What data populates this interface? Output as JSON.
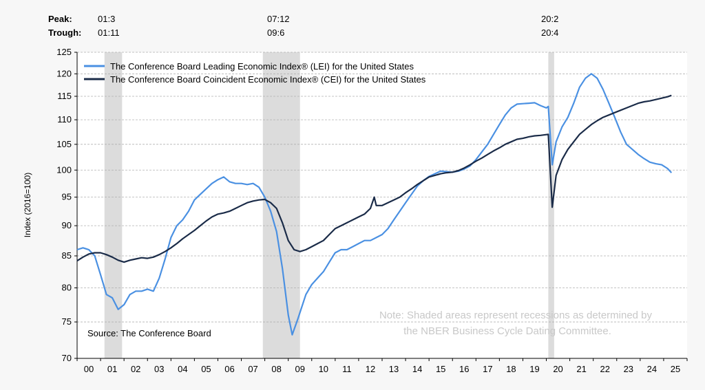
{
  "header": {
    "peak_label": "Peak:",
    "trough_label": "Trough:",
    "recessions": [
      {
        "peak": "01:3",
        "trough": "01:11"
      },
      {
        "peak": "07:12",
        "trough": "09:6"
      },
      {
        "peak": "20:2",
        "trough": "20:4"
      }
    ]
  },
  "note_line1": "Note: Shaded areas represent recessions as determined by",
  "note_line2": "the NBER Business Cycle Dating Committee.",
  "source": "Source: The Conference Board",
  "chart_data": {
    "type": "line",
    "ylabel": "Index (2016=100)",
    "y_scale": "log",
    "ylim": [
      70,
      125
    ],
    "yticks": [
      70,
      75,
      80,
      85,
      90,
      95,
      100,
      105,
      110,
      115,
      120,
      125
    ],
    "xlim": [
      2000,
      2026
    ],
    "xtick_labels": [
      "00",
      "01",
      "02",
      "03",
      "04",
      "05",
      "06",
      "07",
      "08",
      "09",
      "10",
      "11",
      "12",
      "13",
      "14",
      "15",
      "16",
      "17",
      "18",
      "19",
      "20",
      "21",
      "22",
      "23",
      "24",
      "25"
    ],
    "grid": true,
    "legend_position": "top-left",
    "recession_bands": [
      {
        "start": "2001-03",
        "end": "2001-11"
      },
      {
        "start": "2007-12",
        "end": "2009-06"
      },
      {
        "start": "2020-02",
        "end": "2020-04"
      }
    ],
    "series": [
      {
        "name": "The Conference Board Leading Economic Index® (LEI) for the United States",
        "color": "#4a90e2",
        "points": [
          [
            "2000-01",
            86.0
          ],
          [
            "2000-04",
            86.3
          ],
          [
            "2000-07",
            86.0
          ],
          [
            "2000-10",
            85.0
          ],
          [
            "2001-01",
            82.0
          ],
          [
            "2001-04",
            79.0
          ],
          [
            "2001-07",
            78.5
          ],
          [
            "2001-10",
            76.8
          ],
          [
            "2002-01",
            77.5
          ],
          [
            "2002-04",
            79.0
          ],
          [
            "2002-07",
            79.5
          ],
          [
            "2002-10",
            79.5
          ],
          [
            "2003-01",
            79.8
          ],
          [
            "2003-04",
            79.5
          ],
          [
            "2003-07",
            81.5
          ],
          [
            "2003-10",
            84.5
          ],
          [
            "2004-01",
            88.0
          ],
          [
            "2004-04",
            90.0
          ],
          [
            "2004-07",
            91.0
          ],
          [
            "2004-10",
            92.5
          ],
          [
            "2005-01",
            94.5
          ],
          [
            "2005-04",
            95.5
          ],
          [
            "2005-07",
            96.5
          ],
          [
            "2005-10",
            97.5
          ],
          [
            "2006-01",
            98.2
          ],
          [
            "2006-04",
            98.7
          ],
          [
            "2006-07",
            97.8
          ],
          [
            "2006-10",
            97.5
          ],
          [
            "2007-01",
            97.5
          ],
          [
            "2007-04",
            97.3
          ],
          [
            "2007-07",
            97.5
          ],
          [
            "2007-10",
            96.8
          ],
          [
            "2008-01",
            95.0
          ],
          [
            "2008-04",
            92.5
          ],
          [
            "2008-07",
            89.0
          ],
          [
            "2008-10",
            83.0
          ],
          [
            "2009-01",
            76.0
          ],
          [
            "2009-03",
            73.2
          ],
          [
            "2009-06",
            75.5
          ],
          [
            "2009-10",
            79.0
          ],
          [
            "2010-01",
            80.5
          ],
          [
            "2010-04",
            81.5
          ],
          [
            "2010-07",
            82.5
          ],
          [
            "2010-10",
            84.0
          ],
          [
            "2011-01",
            85.5
          ],
          [
            "2011-04",
            86.0
          ],
          [
            "2011-07",
            86.0
          ],
          [
            "2011-10",
            86.5
          ],
          [
            "2012-01",
            87.0
          ],
          [
            "2012-04",
            87.5
          ],
          [
            "2012-07",
            87.5
          ],
          [
            "2012-10",
            88.0
          ],
          [
            "2013-01",
            88.5
          ],
          [
            "2013-04",
            89.5
          ],
          [
            "2013-07",
            91.0
          ],
          [
            "2013-10",
            92.5
          ],
          [
            "2014-01",
            94.0
          ],
          [
            "2014-04",
            95.5
          ],
          [
            "2014-07",
            97.0
          ],
          [
            "2014-10",
            98.0
          ],
          [
            "2015-01",
            98.8
          ],
          [
            "2015-04",
            99.3
          ],
          [
            "2015-07",
            99.8
          ],
          [
            "2015-10",
            99.7
          ],
          [
            "2016-01",
            99.6
          ],
          [
            "2016-04",
            99.8
          ],
          [
            "2016-07",
            100.2
          ],
          [
            "2016-10",
            100.8
          ],
          [
            "2017-01",
            102.0
          ],
          [
            "2017-04",
            103.5
          ],
          [
            "2017-07",
            105.0
          ],
          [
            "2017-10",
            107.0
          ],
          [
            "2018-01",
            109.0
          ],
          [
            "2018-04",
            111.0
          ],
          [
            "2018-07",
            112.5
          ],
          [
            "2018-10",
            113.3
          ],
          [
            "2019-01",
            113.4
          ],
          [
            "2019-04",
            113.5
          ],
          [
            "2019-07",
            113.6
          ],
          [
            "2019-10",
            113.0
          ],
          [
            "2020-01",
            112.5
          ],
          [
            "2020-02",
            112.8
          ],
          [
            "2020-04",
            101.0
          ],
          [
            "2020-06",
            105.5
          ],
          [
            "2020-09",
            108.5
          ],
          [
            "2020-12",
            110.5
          ],
          [
            "2021-03",
            113.5
          ],
          [
            "2021-06",
            117.0
          ],
          [
            "2021-09",
            119.0
          ],
          [
            "2021-12",
            120.0
          ],
          [
            "2022-03",
            119.0
          ],
          [
            "2022-06",
            116.5
          ],
          [
            "2022-09",
            113.5
          ],
          [
            "2022-12",
            110.5
          ],
          [
            "2023-03",
            107.5
          ],
          [
            "2023-06",
            105.0
          ],
          [
            "2023-09",
            104.0
          ],
          [
            "2023-12",
            103.0
          ],
          [
            "2024-03",
            102.2
          ],
          [
            "2024-06",
            101.5
          ],
          [
            "2024-09",
            101.2
          ],
          [
            "2024-12",
            101.0
          ],
          [
            "2025-03",
            100.3
          ],
          [
            "2025-05",
            99.5
          ]
        ]
      },
      {
        "name": "The Conference Board Coincident Economic Index® (CEI) for the United States",
        "color": "#1a2b48",
        "points": [
          [
            "2000-01",
            84.2
          ],
          [
            "2000-04",
            84.8
          ],
          [
            "2000-07",
            85.3
          ],
          [
            "2000-10",
            85.5
          ],
          [
            "2001-01",
            85.5
          ],
          [
            "2001-04",
            85.2
          ],
          [
            "2001-07",
            84.8
          ],
          [
            "2001-10",
            84.3
          ],
          [
            "2002-01",
            84.0
          ],
          [
            "2002-04",
            84.3
          ],
          [
            "2002-07",
            84.5
          ],
          [
            "2002-10",
            84.7
          ],
          [
            "2003-01",
            84.6
          ],
          [
            "2003-04",
            84.8
          ],
          [
            "2003-07",
            85.2
          ],
          [
            "2003-10",
            85.7
          ],
          [
            "2004-01",
            86.3
          ],
          [
            "2004-04",
            87.0
          ],
          [
            "2004-07",
            87.8
          ],
          [
            "2004-10",
            88.5
          ],
          [
            "2005-01",
            89.2
          ],
          [
            "2005-04",
            90.0
          ],
          [
            "2005-07",
            90.8
          ],
          [
            "2005-10",
            91.5
          ],
          [
            "2006-01",
            92.0
          ],
          [
            "2006-04",
            92.2
          ],
          [
            "2006-07",
            92.5
          ],
          [
            "2006-10",
            93.0
          ],
          [
            "2007-01",
            93.5
          ],
          [
            "2007-04",
            94.0
          ],
          [
            "2007-07",
            94.3
          ],
          [
            "2007-10",
            94.5
          ],
          [
            "2008-01",
            94.6
          ],
          [
            "2008-04",
            94.0
          ],
          [
            "2008-07",
            93.0
          ],
          [
            "2008-10",
            90.5
          ],
          [
            "2009-01",
            87.5
          ],
          [
            "2009-04",
            86.0
          ],
          [
            "2009-07",
            85.7
          ],
          [
            "2009-10",
            86.0
          ],
          [
            "2010-01",
            86.5
          ],
          [
            "2010-04",
            87.0
          ],
          [
            "2010-07",
            87.5
          ],
          [
            "2010-10",
            88.5
          ],
          [
            "2011-01",
            89.5
          ],
          [
            "2011-04",
            90.0
          ],
          [
            "2011-07",
            90.5
          ],
          [
            "2011-10",
            91.0
          ],
          [
            "2012-01",
            91.5
          ],
          [
            "2012-04",
            92.0
          ],
          [
            "2012-07",
            93.0
          ],
          [
            "2012-09",
            95.0
          ],
          [
            "2012-10",
            93.5
          ],
          [
            "2013-01",
            93.5
          ],
          [
            "2013-04",
            94.0
          ],
          [
            "2013-07",
            94.5
          ],
          [
            "2013-10",
            95.0
          ],
          [
            "2014-01",
            95.8
          ],
          [
            "2014-04",
            96.5
          ],
          [
            "2014-07",
            97.3
          ],
          [
            "2014-10",
            98.0
          ],
          [
            "2015-01",
            98.7
          ],
          [
            "2015-04",
            99.0
          ],
          [
            "2015-07",
            99.3
          ],
          [
            "2015-10",
            99.5
          ],
          [
            "2016-01",
            99.6
          ],
          [
            "2016-04",
            99.9
          ],
          [
            "2016-07",
            100.4
          ],
          [
            "2016-10",
            101.0
          ],
          [
            "2017-01",
            101.7
          ],
          [
            "2017-04",
            102.3
          ],
          [
            "2017-07",
            103.0
          ],
          [
            "2017-10",
            103.7
          ],
          [
            "2018-01",
            104.3
          ],
          [
            "2018-04",
            105.0
          ],
          [
            "2018-07",
            105.5
          ],
          [
            "2018-10",
            106.0
          ],
          [
            "2019-01",
            106.2
          ],
          [
            "2019-04",
            106.5
          ],
          [
            "2019-07",
            106.7
          ],
          [
            "2019-10",
            106.8
          ],
          [
            "2020-02",
            107.0
          ],
          [
            "2020-04",
            93.2
          ],
          [
            "2020-06",
            99.0
          ],
          [
            "2020-09",
            102.0
          ],
          [
            "2020-12",
            104.0
          ],
          [
            "2021-03",
            105.5
          ],
          [
            "2021-06",
            107.0
          ],
          [
            "2021-09",
            108.0
          ],
          [
            "2021-12",
            109.0
          ],
          [
            "2022-03",
            109.8
          ],
          [
            "2022-06",
            110.5
          ],
          [
            "2022-09",
            111.0
          ],
          [
            "2022-12",
            111.5
          ],
          [
            "2023-03",
            112.0
          ],
          [
            "2023-06",
            112.5
          ],
          [
            "2023-09",
            113.0
          ],
          [
            "2023-12",
            113.5
          ],
          [
            "2024-03",
            113.8
          ],
          [
            "2024-06",
            114.0
          ],
          [
            "2024-09",
            114.3
          ],
          [
            "2024-12",
            114.6
          ],
          [
            "2025-03",
            114.9
          ],
          [
            "2025-05",
            115.2
          ]
        ]
      }
    ]
  }
}
